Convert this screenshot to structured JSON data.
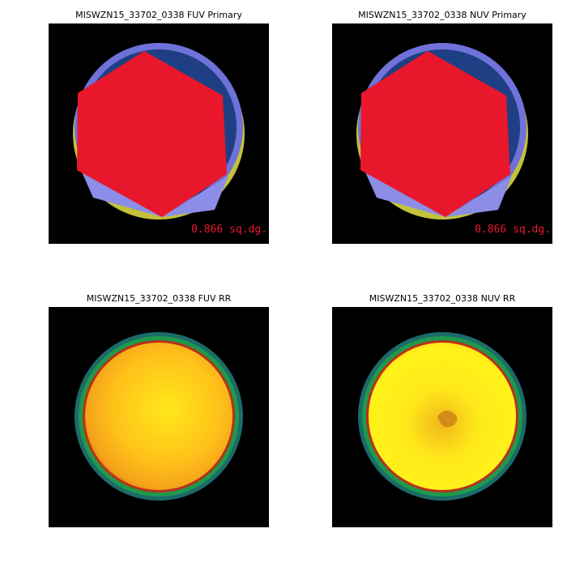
{
  "panels": [
    {
      "title": "MISWZN15_33702_0338 FUV Primary",
      "label": "0.866 sq.dg."
    },
    {
      "title": "MISWZN15_33702_0338 NUV Primary",
      "label": "0.866 sq.dg."
    },
    {
      "title": "MISWZN15_33702_0338 FUV RR"
    },
    {
      "title": "MISWZN15_33702_0338 NUV RR"
    }
  ]
}
